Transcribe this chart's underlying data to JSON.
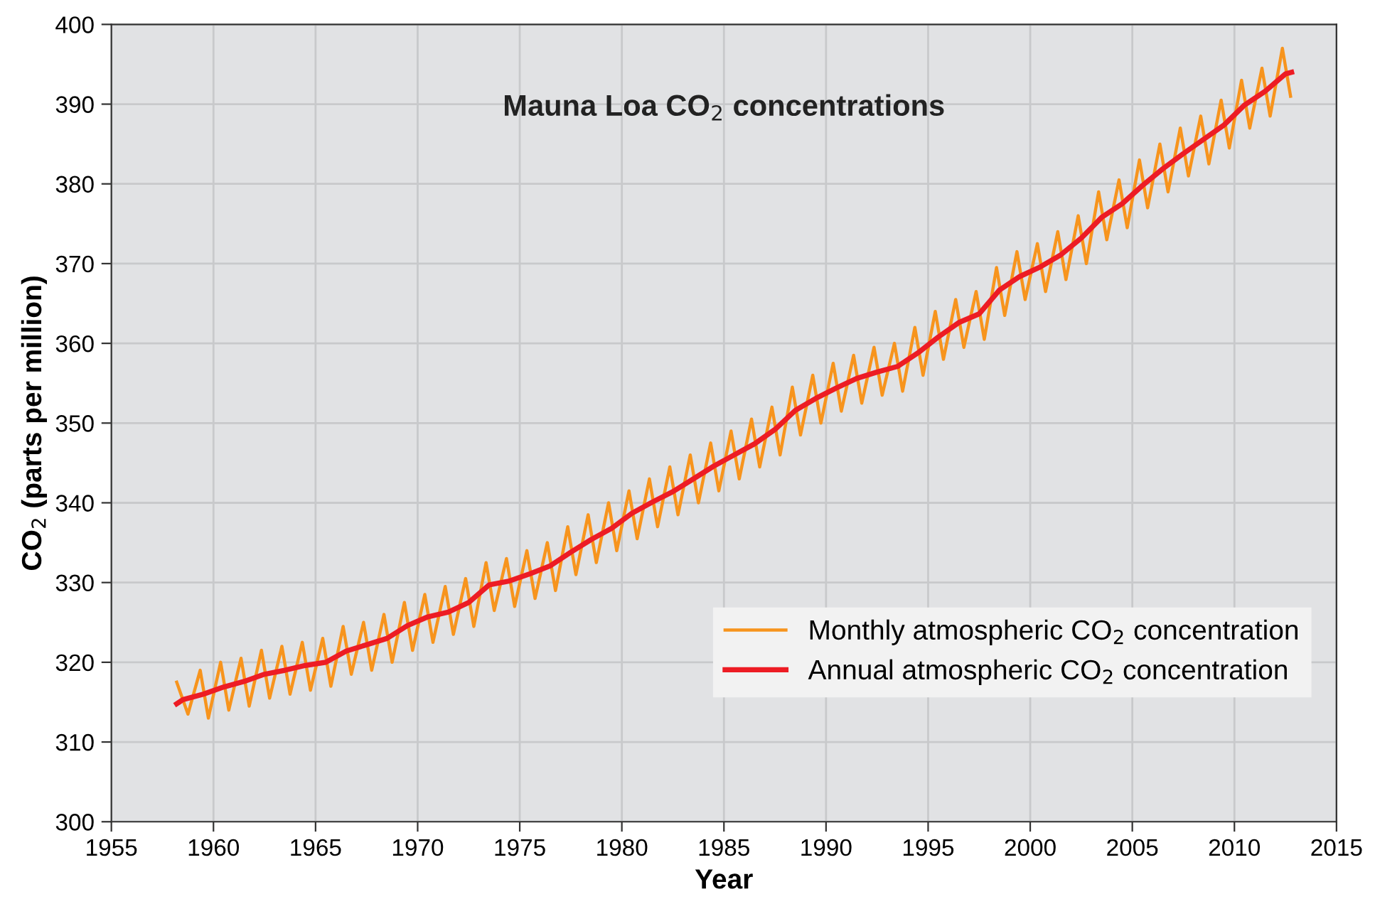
{
  "chart_data": {
    "type": "line",
    "title": "Mauna Loa CO$_{2}$ concentrations",
    "xlabel": "Year",
    "ylabel": "CO$_{2}$ (parts per million)",
    "xlim": [
      1955,
      2015
    ],
    "xticks": [
      1955,
      1960,
      1965,
      1970,
      1975,
      1980,
      1985,
      1990,
      1995,
      2000,
      2005,
      2010,
      2015
    ],
    "ylim": [
      300,
      400
    ],
    "yticks": [
      300,
      310,
      320,
      330,
      340,
      350,
      360,
      370,
      380,
      390,
      400
    ],
    "grid": true,
    "legend": "bottom right",
    "marker": "none",
    "line_style": "solid",
    "series": [
      {
        "name": "Monthly atmospheric CO$_{2}$ concentration",
        "color": "#f7941d",
        "x": [
          1958.2,
          1958.75,
          1959.35,
          1959.75,
          1960.35,
          1960.75,
          1961.35,
          1961.75,
          1962.35,
          1962.75,
          1963.35,
          1963.75,
          1964.35,
          1964.75,
          1965.35,
          1965.75,
          1966.35,
          1966.75,
          1967.35,
          1967.75,
          1968.35,
          1968.75,
          1969.35,
          1969.75,
          1970.35,
          1970.75,
          1971.35,
          1971.75,
          1972.35,
          1972.75,
          1973.35,
          1973.75,
          1974.35,
          1974.75,
          1975.35,
          1975.75,
          1976.35,
          1976.75,
          1977.35,
          1977.75,
          1978.35,
          1978.75,
          1979.35,
          1979.75,
          1980.35,
          1980.75,
          1981.35,
          1981.75,
          1982.35,
          1982.75,
          1983.35,
          1983.75,
          1984.35,
          1984.75,
          1985.35,
          1985.75,
          1986.35,
          1986.75,
          1987.35,
          1987.75,
          1988.35,
          1988.75,
          1989.35,
          1989.75,
          1990.35,
          1990.75,
          1991.35,
          1991.75,
          1992.35,
          1992.75,
          1993.35,
          1993.75,
          1994.35,
          1994.75,
          1995.35,
          1995.75,
          1996.35,
          1996.75,
          1997.35,
          1997.75,
          1998.35,
          1998.75,
          1999.35,
          1999.75,
          2000.35,
          2000.75,
          2001.35,
          2001.75,
          2002.35,
          2002.75,
          2003.35,
          2003.75,
          2004.35,
          2004.75,
          2005.35,
          2005.75,
          2006.35,
          2006.75,
          2007.35,
          2007.75,
          2008.35,
          2008.75,
          2009.35,
          2009.75,
          2010.35,
          2010.75,
          2011.35,
          2011.75,
          2012.35,
          2012.75
        ],
        "values": [
          317.5,
          313.5,
          319,
          313,
          320,
          314,
          320.5,
          314.5,
          321.5,
          315.5,
          322,
          316,
          322.5,
          316.5,
          323,
          317,
          324.5,
          318.5,
          325,
          319,
          326,
          320,
          327.5,
          321.5,
          328.5,
          322.5,
          329.5,
          323.5,
          330.5,
          324.5,
          332.5,
          326.5,
          333,
          327,
          334,
          328,
          335,
          329,
          337,
          331,
          338.5,
          332.5,
          340,
          334,
          341.5,
          335.5,
          343,
          337,
          344.5,
          338.5,
          346,
          340,
          347.5,
          341.5,
          349,
          343,
          350.5,
          344.5,
          352,
          346,
          354.5,
          348.5,
          356,
          350,
          357.5,
          351.5,
          358.5,
          352.5,
          359.5,
          353.5,
          360,
          354,
          362,
          356,
          364,
          358,
          365.5,
          359.5,
          366.5,
          360.5,
          369.5,
          363.5,
          371.5,
          365.5,
          372.5,
          366.5,
          374,
          368,
          376,
          370,
          379,
          373,
          380.5,
          374.5,
          383,
          377,
          385,
          379,
          387,
          381,
          388.5,
          382.5,
          390.5,
          384.5,
          393,
          387,
          394.5,
          388.5,
          397,
          391
        ]
      },
      {
        "name": "Annual atmospheric CO$_{2}$ concentration",
        "color": "#ed1c24",
        "x": [
          1958.2,
          1958.5,
          1959.5,
          1960.5,
          1961.5,
          1962.5,
          1963.5,
          1964.5,
          1965.5,
          1966.5,
          1967.5,
          1968.5,
          1969.5,
          1970.5,
          1971.5,
          1972.5,
          1973.5,
          1974.5,
          1975.5,
          1976.5,
          1977.5,
          1978.5,
          1979.5,
          1980.5,
          1981.5,
          1982.5,
          1983.5,
          1984.5,
          1985.5,
          1986.5,
          1987.5,
          1988.5,
          1989.5,
          1990.5,
          1991.5,
          1992.5,
          1993.5,
          1994.5,
          1995.5,
          1996.5,
          1997.5,
          1998.5,
          1999.5,
          2000.5,
          2001.5,
          2002.5,
          2003.5,
          2004.5,
          2005.5,
          2006.5,
          2007.5,
          2008.5,
          2009.5,
          2010.5,
          2011.5,
          2012.5,
          2012.8
        ],
        "values": [
          314.8,
          315.3,
          316,
          316.9,
          317.6,
          318.5,
          319,
          319.6,
          320,
          321.4,
          322.2,
          323,
          324.6,
          325.7,
          326.3,
          327.5,
          329.7,
          330.2,
          331.1,
          332.1,
          333.8,
          335.4,
          336.8,
          338.7,
          340.1,
          341.4,
          343,
          344.6,
          346,
          347.4,
          349.2,
          351.6,
          353.1,
          354.4,
          355.6,
          356.4,
          357.1,
          358.8,
          360.8,
          362.6,
          363.7,
          366.7,
          368.4,
          369.6,
          371.1,
          373.2,
          375.8,
          377.5,
          379.8,
          381.9,
          383.8,
          385.6,
          387.4,
          389.9,
          391.6,
          393.8,
          394
        ]
      }
    ]
  }
}
